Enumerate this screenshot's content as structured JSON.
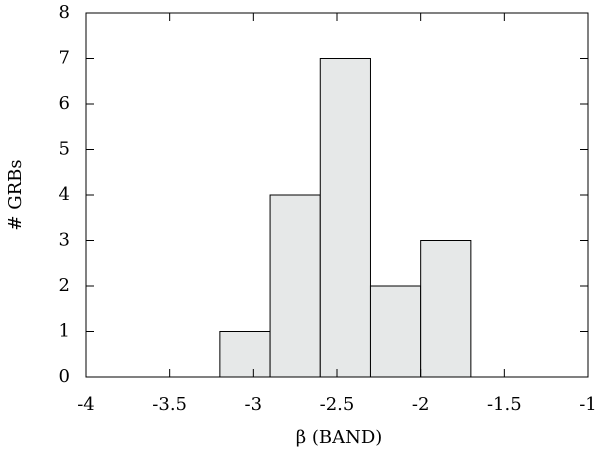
{
  "chart_data": {
    "type": "histogram",
    "xlabel": "β (BAND)",
    "ylabel": "# GRBs",
    "bins": [
      -3.2,
      -2.9,
      -2.6,
      -2.3,
      -2.0,
      -1.7
    ],
    "values": [
      1,
      4,
      7,
      2,
      3
    ],
    "color": "#e6e8e8",
    "xlim": [
      -4,
      -1
    ],
    "xticks": [
      -4,
      -3.5,
      -3,
      -2.5,
      -2,
      -1.5,
      -1
    ],
    "ylim": [
      0,
      8
    ],
    "yticks": [
      0,
      1,
      2,
      3,
      4,
      5,
      6,
      7,
      8
    ]
  }
}
